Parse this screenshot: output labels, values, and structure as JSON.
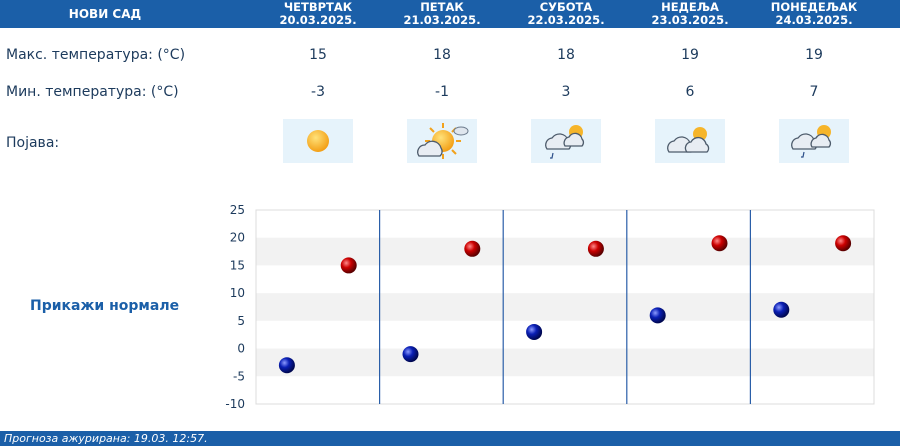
{
  "location": "НОВИ САД",
  "days": [
    {
      "name": "ЧЕТВРТАК",
      "date": "20.03.2025.",
      "max": "15",
      "min": "-3",
      "icon": "sun-icon"
    },
    {
      "name": "ПЕТАК",
      "date": "21.03.2025.",
      "max": "18",
      "min": "-1",
      "icon": "partly-cloudy-icon"
    },
    {
      "name": "СУБОТА",
      "date": "22.03.2025.",
      "max": "18",
      "min": "3",
      "icon": "cloud-rain-icon"
    },
    {
      "name": "НЕДЕЉА",
      "date": "23.03.2025.",
      "max": "19",
      "min": "6",
      "icon": "cloudy-icon"
    },
    {
      "name": "ПОНЕДЕЉАК",
      "date": "24.03.2025.",
      "max": "19",
      "min": "7",
      "icon": "cloud-rain-icon"
    }
  ],
  "labels": {
    "max": "Макс. температура: (°C)",
    "min": "Мин. температура: (°C)",
    "phenomenon": "Појава:"
  },
  "normals_link": "Прикажи нормале",
  "footer": "Прогноза ажурирана:  19.03.  12:57.",
  "colors": {
    "accent": "#1b5fa8",
    "max_point": "#cc0000",
    "min_point": "#0a1fb5"
  },
  "chart_data": {
    "type": "scatter",
    "title": "",
    "xlabel": "",
    "ylabel": "",
    "categories": [
      "20.03.2025.",
      "21.03.2025.",
      "22.03.2025.",
      "23.03.2025.",
      "24.03.2025."
    ],
    "yticks": [
      "25",
      "20",
      "15",
      "10",
      "5",
      "0",
      "-5",
      "-10"
    ],
    "ylim": [
      -10,
      25
    ],
    "grid": true,
    "series": [
      {
        "values": [
          15,
          18,
          18,
          19,
          19
        ],
        "color": "#cc0000"
      },
      {
        "values": [
          -3,
          -1,
          3,
          6,
          7
        ],
        "color": "#0a1fb5"
      }
    ]
  }
}
